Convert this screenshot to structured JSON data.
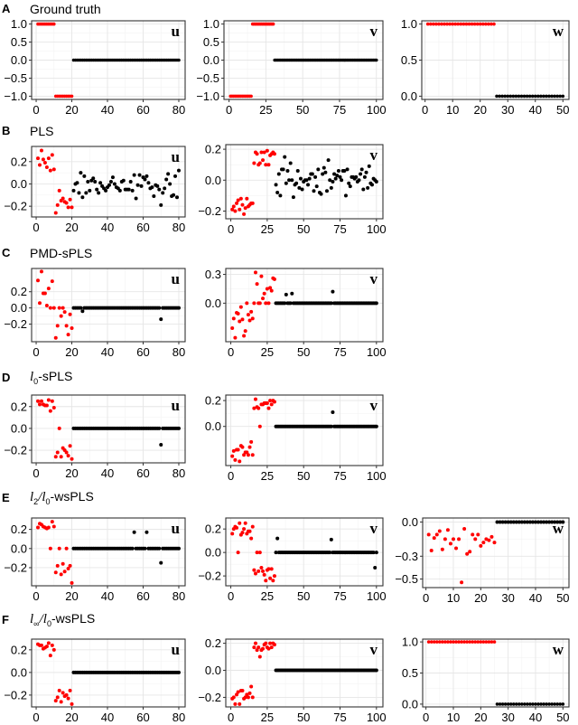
{
  "colors": {
    "selected": "#ff0000",
    "other": "#000000",
    "grid_major": "#e6e6e6",
    "grid_minor": "#f3f3f3",
    "frame": "#333333"
  },
  "chart_data": [
    {
      "row": "A",
      "title": "Ground truth",
      "panel": "u",
      "type": "scatter",
      "xlim": [
        1,
        80
      ],
      "ylim": [
        -1,
        1
      ],
      "xticks": [
        0,
        20,
        40,
        60,
        80
      ],
      "yticks": [
        -1.0,
        -0.5,
        0.0,
        0.5,
        1.0
      ],
      "ytick_labels": [
        "-1.0",
        "-0.5",
        "0.0",
        "0.5",
        "1.0"
      ],
      "segments": [
        {
          "from": 1,
          "to": 10,
          "value": 1.0,
          "color": "red"
        },
        {
          "from": 11,
          "to": 20,
          "value": -1.0,
          "color": "red"
        },
        {
          "from": 21,
          "to": 80,
          "value": 0.0,
          "color": "black"
        }
      ]
    },
    {
      "row": "A",
      "panel": "v",
      "type": "scatter",
      "xlim": [
        1,
        100
      ],
      "ylim": [
        -1,
        1
      ],
      "xticks": [
        0,
        25,
        50,
        75,
        100
      ],
      "yticks": [
        -1.0,
        -0.5,
        0.0,
        0.5,
        1.0
      ],
      "ytick_labels": [
        "-1.0",
        "-0.5",
        "0.0",
        "0.5",
        "1.0"
      ],
      "segments": [
        {
          "from": 1,
          "to": 15,
          "value": -1.0,
          "color": "red"
        },
        {
          "from": 16,
          "to": 30,
          "value": 1.0,
          "color": "red"
        },
        {
          "from": 31,
          "to": 100,
          "value": 0.0,
          "color": "black"
        }
      ]
    },
    {
      "row": "A",
      "panel": "w",
      "type": "scatter",
      "xlim": [
        1,
        50
      ],
      "ylim": [
        0,
        1
      ],
      "xticks": [
        0,
        10,
        20,
        30,
        40,
        50
      ],
      "yticks": [
        0.0,
        0.5,
        1.0
      ],
      "ytick_labels": [
        "0.0",
        "0.5",
        "1.0"
      ],
      "segments": [
        {
          "from": 1,
          "to": 25,
          "value": 1.0,
          "color": "red"
        },
        {
          "from": 26,
          "to": 50,
          "value": 0.0,
          "color": "black"
        }
      ]
    },
    {
      "row": "B",
      "title": "PLS",
      "panel": "u",
      "type": "scatter",
      "xlim": [
        1,
        80
      ],
      "ylim": [
        -0.27,
        0.31
      ],
      "xticks": [
        0,
        20,
        40,
        60,
        80
      ],
      "yticks": [
        -0.2,
        0.0,
        0.2
      ],
      "ytick_labels": [
        "-0.2",
        "0.0",
        "0.2"
      ],
      "red_x": [
        1,
        2,
        3,
        4,
        5,
        6,
        7,
        8,
        9,
        10,
        11,
        12,
        13,
        14,
        15,
        16,
        17,
        18,
        19,
        20
      ],
      "red_y": [
        0.23,
        0.17,
        0.3,
        0.22,
        0.19,
        0.15,
        0.23,
        0.12,
        0.26,
        0.13,
        -0.26,
        -0.19,
        -0.06,
        -0.15,
        -0.13,
        -0.16,
        -0.17,
        -0.21,
        -0.14,
        -0.21
      ],
      "black_x_start": 21,
      "black_y": [
        -0.06,
        0.0,
        0.01,
        -0.08,
        0.1,
        -0.12,
        0.07,
        -0.08,
        0.02,
        -0.06,
        0.03,
        0.05,
        0.02,
        -0.05,
        -0.08,
        0.01,
        -0.02,
        -0.04,
        -0.06,
        -0.03,
        -0.01,
        0.02,
        0.06,
        0.0,
        -0.03,
        -0.04,
        -0.06,
        0.02,
        0.03,
        -0.05,
        -0.05,
        -0.05,
        0.02,
        -0.06,
        0.08,
        -0.13,
        -0.01,
        0.08,
        -0.02,
        0.06,
        0.04,
        0.07,
        0.01,
        -0.04,
        -0.03,
        -0.11,
        -0.01,
        -0.02,
        -0.05,
        -0.19,
        -0.08,
        -0.04,
        0.04,
        0.09,
        0.0,
        -0.11,
        -0.1,
        0.07,
        -0.12,
        0.12
      ]
    },
    {
      "row": "B",
      "panel": "v",
      "type": "scatter",
      "xlim": [
        1,
        100
      ],
      "ylim": [
        -0.23,
        0.21
      ],
      "xticks": [
        0,
        25,
        50,
        75,
        100
      ],
      "yticks": [
        -0.2,
        0.0,
        0.2
      ],
      "ytick_labels": [
        "-0.2",
        "0.0",
        "0.2"
      ],
      "red_x": [
        1,
        2,
        3,
        4,
        5,
        6,
        7,
        8,
        9,
        10,
        11,
        12,
        13,
        14,
        15,
        16,
        17,
        18,
        19,
        20,
        21,
        22,
        23,
        24,
        25,
        26,
        27,
        28,
        29,
        30
      ],
      "red_y": [
        -0.19,
        -0.17,
        -0.2,
        -0.15,
        -0.13,
        -0.19,
        -0.12,
        -0.16,
        -0.22,
        -0.18,
        -0.12,
        -0.17,
        -0.16,
        -0.15,
        -0.15,
        0.11,
        0.18,
        0.17,
        0.1,
        0.11,
        0.18,
        0.13,
        0.18,
        0.1,
        0.19,
        0.1,
        0.16,
        0.17,
        0.18,
        0.17
      ],
      "black_x_start": 31,
      "black_y": [
        -0.03,
        -0.08,
        0.04,
        -0.1,
        0.07,
        0.07,
        0.15,
        -0.02,
        0.06,
        0.0,
        0.11,
        0.0,
        -0.11,
        -0.03,
        -0.02,
        0.06,
        -0.05,
        0.01,
        -0.06,
        -0.01,
        0.0,
        0.0,
        -0.03,
        0.01,
        0.04,
        0.04,
        -0.07,
        0.02,
        -0.04,
        0.07,
        -0.08,
        -0.09,
        0.04,
        0.08,
        0.05,
        -0.07,
        0.13,
        0.0,
        -0.05,
        -0.01,
        0.04,
        0.01,
        0.03,
        0.06,
        0.02,
        0.0,
        0.06,
        0.06,
        -0.1,
        0.07,
        -0.02,
        -0.04,
        0.02,
        0.02,
        0.01,
        0.02,
        -0.01,
        0.0,
        0.04,
        0.07,
        -0.06,
        0.02,
        0.05,
        -0.05,
        0.09,
        -0.02,
        -0.03,
        0.01,
        0.0,
        -0.01
      ]
    },
    {
      "row": "C",
      "title": "PMD-sPLS",
      "panel": "u",
      "type": "scatter",
      "xlim": [
        1,
        80
      ],
      "ylim": [
        -0.38,
        0.45
      ],
      "xticks": [
        0,
        20,
        40,
        60,
        80
      ],
      "yticks": [
        -0.2,
        0.0,
        0.2
      ],
      "ytick_labels": [
        "-0.2",
        "0.0",
        "0.2"
      ],
      "red_x": [
        1,
        2,
        3,
        4,
        5,
        6,
        7,
        8,
        9,
        10,
        11,
        12,
        13,
        14,
        15,
        16,
        17,
        18,
        19,
        20
      ],
      "red_y": [
        0.34,
        0.06,
        0.45,
        0.18,
        0.18,
        0.03,
        0.24,
        0.0,
        0.33,
        0.0,
        -0.37,
        -0.22,
        0.0,
        -0.1,
        0.0,
        -0.05,
        -0.22,
        -0.33,
        -0.08,
        -0.25
      ],
      "black_x_start": 21,
      "black_y_default": 0.0,
      "black_exceptions": [
        {
          "x": 26,
          "y": -0.04
        },
        {
          "x": 70,
          "y": -0.14
        }
      ]
    },
    {
      "row": "C",
      "panel": "v",
      "type": "scatter",
      "xlim": [
        1,
        100
      ],
      "ylim": [
        -0.37,
        0.33
      ],
      "xticks": [
        0,
        25,
        50,
        75,
        100
      ],
      "yticks": [
        0.0,
        0.3
      ],
      "ytick_labels": [
        "0.0",
        "0.3"
      ],
      "red_x": [
        1,
        2,
        3,
        4,
        5,
        6,
        7,
        8,
        9,
        10,
        11,
        12,
        13,
        14,
        15,
        16,
        17,
        18,
        19,
        20,
        21,
        22,
        23,
        24,
        25,
        26,
        27,
        28,
        29,
        30
      ],
      "red_y": [
        -0.26,
        -0.16,
        -0.36,
        -0.1,
        -0.11,
        -0.19,
        -0.04,
        -0.17,
        -0.34,
        -0.29,
        0.0,
        -0.12,
        -0.18,
        -0.09,
        -0.16,
        0.0,
        0.32,
        0.2,
        0.0,
        0.0,
        0.28,
        0.05,
        0.1,
        0.0,
        0.15,
        0.0,
        0.16,
        0.13,
        0.26,
        0.25
      ],
      "black_x_start": 31,
      "black_y_default": 0.0,
      "black_exceptions": [
        {
          "x": 38,
          "y": 0.09
        },
        {
          "x": 42,
          "y": 0.1
        },
        {
          "x": 70,
          "y": 0.12
        }
      ]
    },
    {
      "row": "D",
      "title": "l0-sPLS",
      "panel": "u",
      "type": "scatter",
      "xlim": [
        1,
        80
      ],
      "ylim": [
        -0.29,
        0.28
      ],
      "xticks": [
        0,
        20,
        40,
        60,
        80
      ],
      "yticks": [
        -0.2,
        0.0,
        0.2
      ],
      "ytick_labels": [
        "-0.2",
        "0.0",
        "0.2"
      ],
      "red_x": [
        1,
        2,
        3,
        4,
        5,
        6,
        7,
        8,
        9,
        10,
        11,
        12,
        13,
        14,
        15,
        16,
        17,
        18,
        19,
        20
      ],
      "red_y": [
        0.25,
        0.22,
        0.25,
        0.22,
        0.21,
        0.21,
        0.26,
        0.16,
        0.25,
        0.19,
        -0.26,
        -0.22,
        0.0,
        -0.26,
        -0.18,
        -0.2,
        -0.22,
        -0.25,
        -0.16,
        -0.28
      ],
      "black_x_start": 21,
      "black_y_default": 0.0,
      "black_exceptions": [
        {
          "x": 70,
          "y": -0.15
        }
      ]
    },
    {
      "row": "D",
      "panel": "v",
      "type": "scatter",
      "xlim": [
        1,
        100
      ],
      "ylim": [
        -0.28,
        0.22
      ],
      "xticks": [
        0,
        25,
        50,
        75,
        100
      ],
      "yticks": [
        0.0,
        0.2
      ],
      "ytick_labels": [
        "0.0",
        "0.2"
      ],
      "red_x": [
        1,
        2,
        3,
        4,
        5,
        6,
        7,
        8,
        9,
        10,
        11,
        12,
        13,
        14,
        15,
        16,
        17,
        18,
        19,
        20,
        21,
        22,
        23,
        24,
        25,
        26,
        27,
        28,
        29,
        30
      ],
      "red_y": [
        -0.23,
        -0.19,
        -0.26,
        -0.18,
        -0.18,
        -0.27,
        -0.15,
        -0.16,
        -0.22,
        -0.2,
        -0.2,
        -0.22,
        -0.16,
        -0.12,
        -0.22,
        0.14,
        0.21,
        0.15,
        0.14,
        0.0,
        0.17,
        0.17,
        0.18,
        0.18,
        0.18,
        0.14,
        0.2,
        0.17,
        0.2,
        0.19
      ],
      "black_x_start": 31,
      "black_y_default": 0.0,
      "black_exceptions": [
        {
          "x": 70,
          "y": 0.11
        }
      ]
    },
    {
      "row": "E",
      "title": "l2/l0-wsPLS",
      "panel": "u",
      "type": "scatter",
      "xlim": [
        1,
        80
      ],
      "ylim": [
        -0.36,
        0.29
      ],
      "xticks": [
        0,
        20,
        40,
        60,
        80
      ],
      "yticks": [
        -0.2,
        0.0,
        0.2
      ],
      "ytick_labels": [
        "-0.2",
        "0.0",
        "0.2"
      ],
      "red_x": [
        1,
        2,
        3,
        4,
        5,
        6,
        7,
        8,
        9,
        10,
        11,
        12,
        13,
        14,
        15,
        16,
        17,
        18,
        19,
        20
      ],
      "red_y": [
        0.22,
        0.26,
        0.25,
        0.23,
        0.22,
        0.21,
        0.22,
        0.0,
        0.28,
        0.23,
        -0.25,
        -0.18,
        0.0,
        -0.27,
        -0.16,
        -0.24,
        0.0,
        -0.21,
        -0.18,
        -0.36
      ],
      "black_x_start": 21,
      "black_y_default": 0.0,
      "black_exceptions": [
        {
          "x": 55,
          "y": 0.17
        },
        {
          "x": 62,
          "y": 0.17
        },
        {
          "x": 70,
          "y": -0.15
        }
      ]
    },
    {
      "row": "E",
      "panel": "v",
      "type": "scatter",
      "xlim": [
        1,
        100
      ],
      "ylim": [
        -0.26,
        0.27
      ],
      "xticks": [
        0,
        25,
        50,
        75,
        100
      ],
      "yticks": [
        -0.2,
        0.0,
        0.2
      ],
      "ytick_labels": [
        "-0.2",
        "0.0",
        "0.2"
      ],
      "red_x": [
        1,
        2,
        3,
        4,
        5,
        6,
        7,
        8,
        9,
        10,
        11,
        12,
        13,
        14,
        15,
        16,
        17,
        18,
        19,
        20,
        21,
        22,
        23,
        24,
        25,
        26,
        27,
        28,
        29,
        30
      ],
      "red_y": [
        0.16,
        0.2,
        0.22,
        0.21,
        0.0,
        0.25,
        0.15,
        0.17,
        0.2,
        0.25,
        0.16,
        0.18,
        0.18,
        0.12,
        0.22,
        -0.15,
        -0.18,
        0.0,
        -0.16,
        0.0,
        -0.13,
        -0.16,
        -0.19,
        -0.24,
        -0.15,
        -0.14,
        -0.22,
        -0.14,
        -0.24,
        -0.2
      ],
      "black_x_start": 31,
      "black_y_default": 0.0,
      "black_exceptions": [
        {
          "x": 32,
          "y": 0.12
        },
        {
          "x": 69,
          "y": 0.11
        },
        {
          "x": 99,
          "y": -0.13
        }
      ]
    },
    {
      "row": "E",
      "panel": "w",
      "type": "scatter",
      "xlim": [
        1,
        50
      ],
      "ylim": [
        -0.55,
        0.01
      ],
      "xticks": [
        0,
        10,
        20,
        30,
        40,
        50
      ],
      "yticks": [
        -0.5,
        -0.3,
        0.0
      ],
      "ytick_labels": [
        "-0.5",
        "-0.3",
        "0.0"
      ],
      "red_x": [
        1,
        2,
        3,
        4,
        5,
        6,
        7,
        8,
        9,
        10,
        11,
        12,
        13,
        14,
        15,
        16,
        17,
        18,
        19,
        20,
        21,
        22,
        23,
        24,
        25
      ],
      "red_y": [
        -0.11,
        -0.25,
        -0.14,
        -0.11,
        -0.08,
        -0.24,
        -0.15,
        -0.07,
        -0.19,
        -0.15,
        -0.23,
        -0.15,
        -0.53,
        -0.06,
        -0.28,
        -0.26,
        -0.11,
        -0.15,
        -0.11,
        -0.21,
        -0.18,
        -0.15,
        -0.16,
        -0.13,
        -0.18
      ],
      "black_x_start": 26,
      "black_y_default": 0.0
    },
    {
      "row": "F",
      "title": "l∞/l0-wsPLS",
      "panel": "u",
      "type": "scatter",
      "xlim": [
        1,
        80
      ],
      "ylim": [
        -0.28,
        0.27
      ],
      "xticks": [
        0,
        20,
        40,
        60,
        80
      ],
      "yticks": [
        -0.2,
        0.0,
        0.2
      ],
      "ytick_labels": [
        "-0.2",
        "0.0",
        "0.2"
      ],
      "red_x": [
        1,
        2,
        3,
        4,
        5,
        6,
        7,
        8,
        9,
        10,
        11,
        12,
        13,
        14,
        15,
        16,
        17,
        18,
        19,
        20
      ],
      "red_y": [
        0.25,
        0.24,
        0.24,
        0.21,
        0.22,
        0.23,
        0.26,
        0.15,
        0.24,
        0.2,
        -0.25,
        -0.22,
        -0.16,
        -0.26,
        -0.18,
        -0.21,
        -0.2,
        -0.23,
        -0.16,
        -0.28
      ],
      "black_x_start": 21,
      "black_y_default": 0.0
    },
    {
      "row": "F",
      "panel": "v",
      "type": "scatter",
      "xlim": [
        1,
        100
      ],
      "ylim": [
        -0.25,
        0.21
      ],
      "xticks": [
        0,
        25,
        50,
        75,
        100
      ],
      "yticks": [
        -0.2,
        0.0,
        0.2
      ],
      "ytick_labels": [
        "-0.2",
        "0.0",
        "0.2"
      ],
      "red_x": [
        1,
        2,
        3,
        4,
        5,
        6,
        7,
        8,
        9,
        10,
        11,
        12,
        13,
        14,
        15,
        16,
        17,
        18,
        19,
        20,
        21,
        22,
        23,
        24,
        25,
        26,
        27,
        28,
        29,
        30
      ],
      "red_y": [
        -0.21,
        -0.2,
        -0.25,
        -0.18,
        -0.16,
        -0.25,
        -0.15,
        -0.15,
        -0.21,
        -0.2,
        -0.18,
        -0.2,
        -0.17,
        -0.12,
        -0.2,
        0.17,
        0.2,
        0.15,
        0.17,
        0.1,
        0.15,
        0.16,
        0.19,
        0.2,
        0.17,
        0.16,
        0.2,
        0.17,
        0.2,
        0.19
      ],
      "black_x_start": 31,
      "black_y_default": 0.0
    },
    {
      "row": "F",
      "panel": "w",
      "type": "scatter",
      "xlim": [
        1,
        50
      ],
      "ylim": [
        0,
        1
      ],
      "xticks": [
        0,
        10,
        20,
        30,
        40,
        50
      ],
      "yticks": [
        0.0,
        0.5,
        1.0
      ],
      "ytick_labels": [
        "0.0",
        "0.5",
        "1.0"
      ],
      "segments": [
        {
          "from": 1,
          "to": 25,
          "value": 1.0,
          "color": "red"
        },
        {
          "from": 26,
          "to": 50,
          "value": 0.0,
          "color": "black"
        }
      ]
    }
  ],
  "rows": [
    {
      "label": "A",
      "title": "Ground truth"
    },
    {
      "label": "B",
      "title": "PLS"
    },
    {
      "label": "C",
      "title": "PMD-sPLS"
    },
    {
      "label": "D",
      "title_prefix": "l",
      "title_sub": "0",
      "title_suffix": "-sPLS"
    },
    {
      "label": "E",
      "title_prefix": "l",
      "title_sub": "2",
      "title_mid": "/",
      "title_prefix2": "l",
      "title_sub2": "0",
      "title_suffix": "-wsPLS"
    },
    {
      "label": "F",
      "title_prefix": "l",
      "title_sub": "∞",
      "title_mid": "/",
      "title_prefix2": "l",
      "title_sub2": "0",
      "title_suffix": "-wsPLS"
    }
  ],
  "panel_letters": {
    "u": "u",
    "v": "v",
    "w": "w"
  }
}
